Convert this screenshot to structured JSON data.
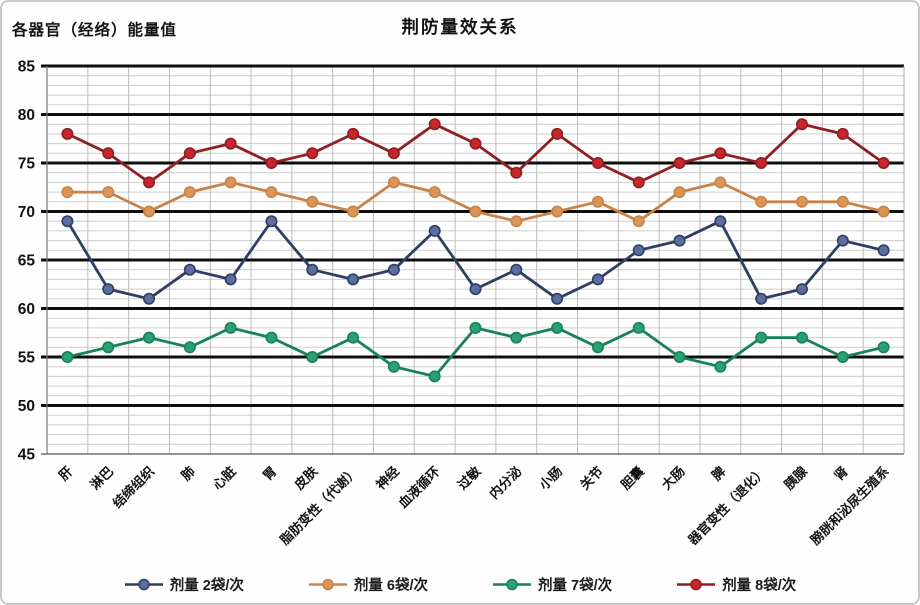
{
  "chart_data": {
    "type": "line",
    "title": "荆防量效关系",
    "ylabel": "各器官（经络）能量值",
    "ylim": [
      45,
      85
    ],
    "yticks": [
      85,
      80,
      75,
      70,
      65,
      60,
      55,
      50,
      45
    ],
    "grid": {
      "major_horizontal": "bold black line every 5 units",
      "minor_horizontal": "light gray line every 1 unit",
      "vertical": "light gray line at each category boundary"
    },
    "legend_position": "bottom-center",
    "categories": [
      "肝",
      "淋巴",
      "结缔组织",
      "肺",
      "心脏",
      "胃",
      "皮肤",
      "脂肪变性（代谢）",
      "神经",
      "血液循环",
      "过敏",
      "内分泌",
      "小肠",
      "关节",
      "胆囊",
      "大肠",
      "脾",
      "器官变性（退化）",
      "胰腺",
      "肾",
      "膀胱和泌尿生殖系"
    ],
    "series": [
      {
        "name": "剂量 2袋/次",
        "line_color": "#2F3F63",
        "dot_color": "#5A6FA0",
        "values": [
          69,
          62,
          61,
          64,
          63,
          69,
          64,
          63,
          64,
          68,
          62,
          64,
          61,
          63,
          66,
          67,
          69,
          61,
          62,
          67,
          66
        ]
      },
      {
        "name": "剂量 6袋/次",
        "line_color": "#C8834A",
        "dot_color": "#DC9457",
        "values": [
          72,
          72,
          70,
          72,
          73,
          72,
          71,
          70,
          73,
          72,
          70,
          69,
          70,
          71,
          69,
          72,
          73,
          71,
          71,
          71,
          70
        ]
      },
      {
        "name": "剂量 7袋/次",
        "line_color": "#17825A",
        "dot_color": "#2AA172",
        "values": [
          55,
          56,
          57,
          56,
          58,
          57,
          55,
          57,
          54,
          53,
          58,
          57,
          58,
          56,
          58,
          55,
          54,
          57,
          57,
          55,
          56
        ]
      },
      {
        "name": "剂量 8袋/次",
        "line_color": "#8E1F24",
        "dot_color": "#C9262C",
        "values": [
          78,
          76,
          73,
          76,
          77,
          75,
          76,
          78,
          76,
          79,
          77,
          74,
          78,
          75,
          73,
          75,
          76,
          75,
          79,
          78,
          75
        ]
      }
    ]
  }
}
